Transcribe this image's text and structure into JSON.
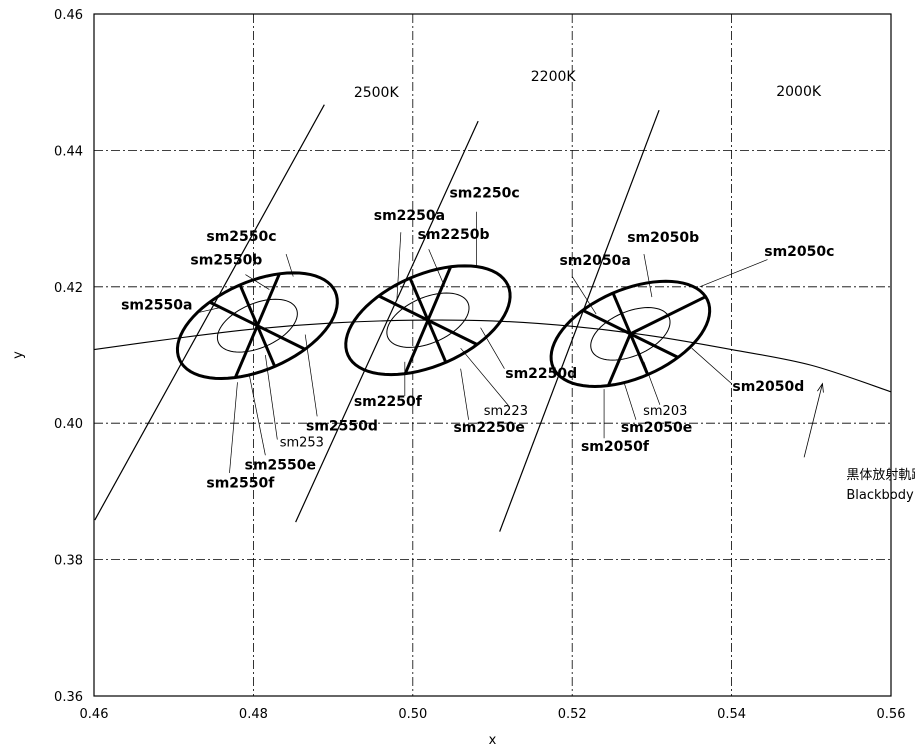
{
  "chart_data": {
    "type": "scatter",
    "xlabel": "x",
    "ylabel": "y",
    "xlim": [
      0.46,
      0.56
    ],
    "ylim": [
      0.36,
      0.46
    ],
    "x_ticks": [
      "0.46",
      "0.48",
      "0.50",
      "0.52",
      "0.54",
      "0.56"
    ],
    "y_ticks": [
      "0.36",
      "0.38",
      "0.40",
      "0.42",
      "0.44",
      "0.46"
    ],
    "grid": true,
    "blackbody_locus": {
      "label_jp": "黒体放射軌跡",
      "label_en": "Blackbody Locus",
      "points": [
        [
          0.46,
          0.4108
        ],
        [
          0.47,
          0.4124
        ],
        [
          0.48,
          0.4138
        ],
        [
          0.49,
          0.4147
        ],
        [
          0.5,
          0.4151
        ],
        [
          0.51,
          0.415
        ],
        [
          0.52,
          0.4142
        ],
        [
          0.53,
          0.4128
        ],
        [
          0.54,
          0.4108
        ],
        [
          0.55,
          0.4085
        ],
        [
          0.56,
          0.4046
        ]
      ]
    },
    "isotemperature_lines": [
      {
        "label": "2500K",
        "from": [
          0.4601,
          0.3858
        ],
        "to": [
          0.4889,
          0.4467
        ]
      },
      {
        "label": "2200K",
        "from": [
          0.4853,
          0.3855
        ],
        "to": [
          0.5082,
          0.4443
        ]
      },
      {
        "label": "2000K",
        "from": [
          0.5109,
          0.3841
        ],
        "to": [
          0.5309,
          0.4459
        ]
      }
    ],
    "ellipses": [
      {
        "name": "sm2550",
        "center": [
          0.4805,
          0.4143
        ],
        "a": 0.011,
        "b": 0.0063,
        "angle_deg": 30,
        "inner_label": "sm253",
        "spokes": [
          {
            "label": "sm2550a",
            "angle_deg": 150
          },
          {
            "label": "sm2550b",
            "angle_deg": 110
          },
          {
            "label": "sm2550c",
            "angle_deg": 70
          },
          {
            "label": "sm2550d",
            "angle_deg": 330
          },
          {
            "label": "sm2550e",
            "angle_deg": 290
          },
          {
            "label": "sm2550f",
            "angle_deg": 250
          }
        ]
      },
      {
        "name": "sm2250",
        "center": [
          0.5019,
          0.4151
        ],
        "a": 0.0113,
        "b": 0.0065,
        "angle_deg": 30,
        "inner_label": "sm223",
        "spokes": [
          {
            "label": "sm2250a",
            "angle_deg": 150
          },
          {
            "label": "sm2250b",
            "angle_deg": 110
          },
          {
            "label": "sm2250c",
            "angle_deg": 70
          },
          {
            "label": "sm2250d",
            "angle_deg": 330
          },
          {
            "label": "sm2250e",
            "angle_deg": 290
          },
          {
            "label": "sm2250f",
            "angle_deg": 250
          }
        ]
      },
      {
        "name": "sm2050",
        "center": [
          0.5273,
          0.4131
        ],
        "a": 0.0109,
        "b": 0.0063,
        "angle_deg": 30,
        "inner_label": "sm203",
        "spokes": [
          {
            "label": "sm2050a",
            "angle_deg": 150
          },
          {
            "label": "sm2050b",
            "angle_deg": 110
          },
          {
            "label": "sm2050c",
            "angle_deg": 30
          },
          {
            "label": "sm2050d",
            "angle_deg": 330
          },
          {
            "label": "sm2050e",
            "angle_deg": 290
          },
          {
            "label": "sm2050f",
            "angle_deg": 250
          }
        ]
      }
    ],
    "labels": {
      "sm2550c": {
        "text": "sm2550c",
        "pos": [
          0.4741,
          0.4267
        ]
      },
      "sm2550b": {
        "text": "sm2550b",
        "pos": [
          0.4721,
          0.4233
        ]
      },
      "sm2550a": {
        "text": "sm2550a",
        "pos": [
          0.4634,
          0.4167
        ]
      },
      "sm253": {
        "text": "sm253",
        "pos": [
          0.4833,
          0.3966
        ]
      },
      "sm2550d": {
        "text": "sm2550d",
        "pos": [
          0.4866,
          0.3989
        ]
      },
      "sm2550e": {
        "text": "sm2550e",
        "pos": [
          0.4789,
          0.3932
        ]
      },
      "sm2550f": {
        "text": "sm2550f",
        "pos": [
          0.4741,
          0.3906
        ]
      },
      "sm2250c": {
        "text": "sm2250c",
        "pos": [
          0.5046,
          0.4331
        ]
      },
      "sm2250a": {
        "text": "sm2250a",
        "pos": [
          0.4951,
          0.4298
        ]
      },
      "sm2250b": {
        "text": "sm2250b",
        "pos": [
          0.5006,
          0.427
        ]
      },
      "sm2250f": {
        "text": "sm2250f",
        "pos": [
          0.4926,
          0.4025
        ]
      },
      "sm2250d": {
        "text": "sm2250d",
        "pos": [
          0.5116,
          0.4066
        ]
      },
      "sm223": {
        "text": "sm223",
        "pos": [
          0.5089,
          0.4012
        ]
      },
      "sm2250e": {
        "text": "sm2250e",
        "pos": [
          0.5051,
          0.3987
        ]
      },
      "sm2050b": {
        "text": "sm2050b",
        "pos": [
          0.5269,
          0.4266
        ]
      },
      "sm2050a": {
        "text": "sm2050a",
        "pos": [
          0.5184,
          0.4232
        ]
      },
      "sm2050c": {
        "text": "sm2050c",
        "pos": [
          0.5441,
          0.4245
        ]
      },
      "sm2050d": {
        "text": "sm2050d",
        "pos": [
          0.5401,
          0.4047
        ]
      },
      "sm203": {
        "text": "sm203",
        "pos": [
          0.5289,
          0.4012
        ]
      },
      "sm2050e": {
        "text": "sm2050e",
        "pos": [
          0.5261,
          0.3987
        ]
      },
      "sm2050f": {
        "text": "sm2050f",
        "pos": [
          0.5211,
          0.3959
        ]
      },
      "2500K": {
        "text": "2500K",
        "pos": [
          0.4926,
          0.4478
        ]
      },
      "2200K": {
        "text": "2200K",
        "pos": [
          0.5148,
          0.4502
        ]
      },
      "2000K": {
        "text": "2000K",
        "pos": [
          0.5456,
          0.448
        ]
      },
      "locus_jp": {
        "text": "黒体放射軌跡",
        "pos": [
          0.5544,
          0.3918
        ]
      },
      "locus_en": {
        "text": "Blackbody Locus",
        "pos": [
          0.5544,
          0.3889
        ]
      }
    },
    "locus_arrow": {
      "from": [
        0.5491,
        0.395
      ],
      "to": [
        0.5514,
        0.4058
      ]
    }
  }
}
